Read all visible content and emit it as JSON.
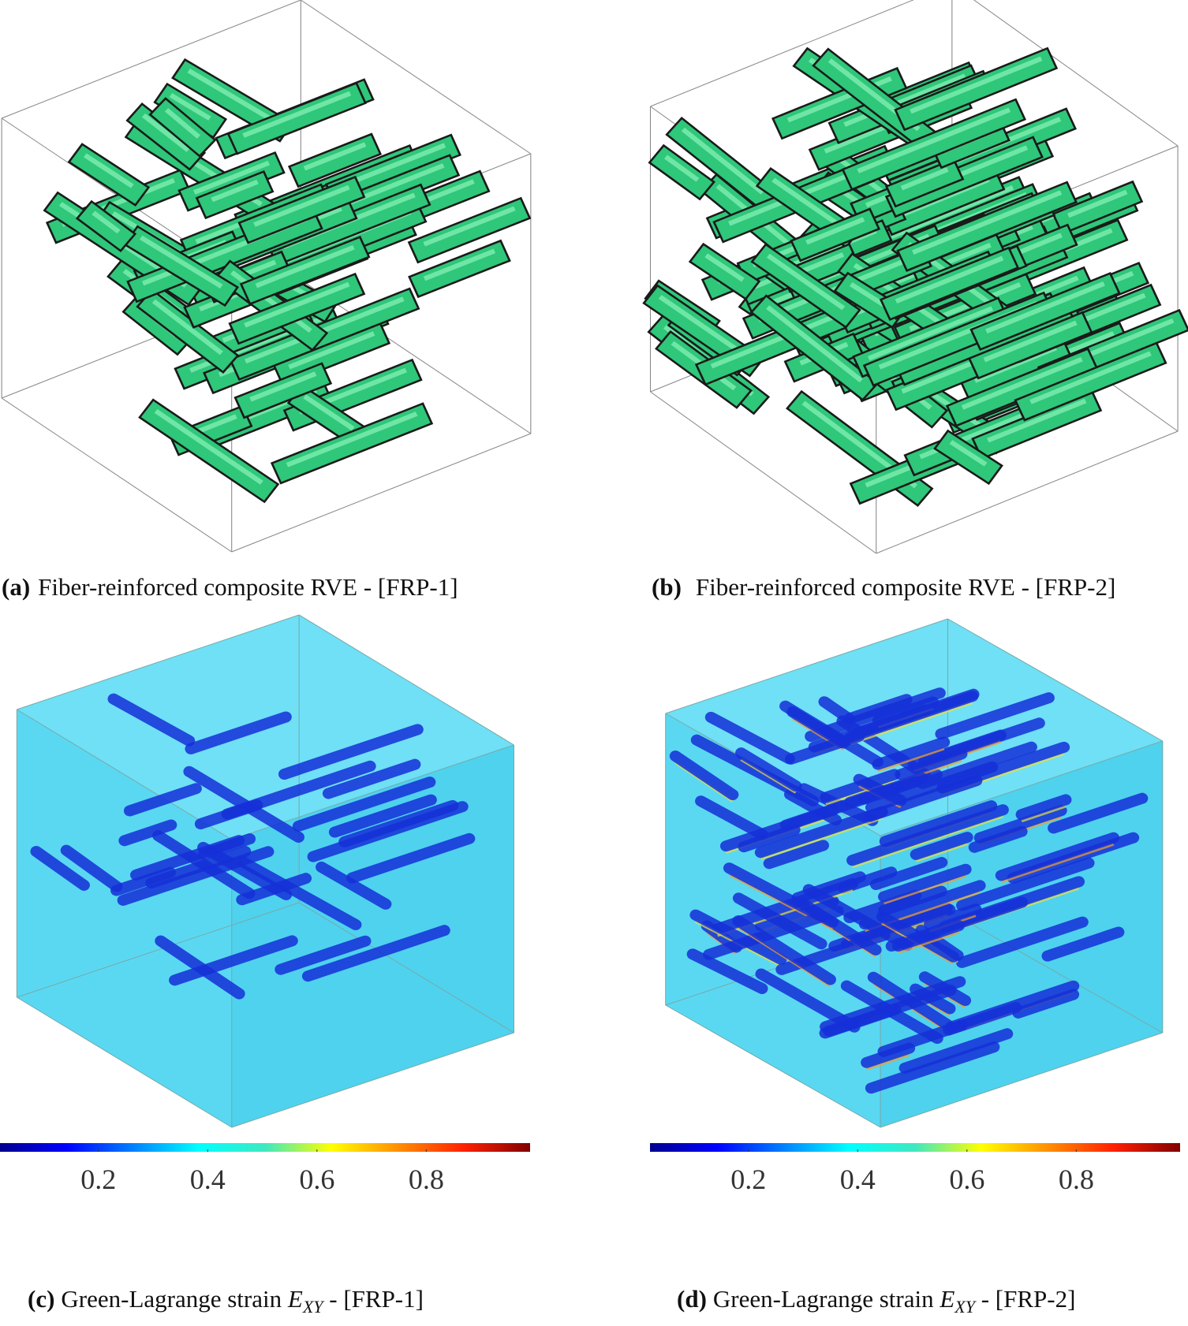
{
  "panels": [
    {
      "label": "(a)",
      "caption": "Fiber-reinforced composite RVE - [FRP-1]"
    },
    {
      "label": "(b)",
      "caption": "Fiber-reinforced composite RVE - [FRP-2]"
    },
    {
      "label": "(c)",
      "caption": "Green-Lagrange strain ",
      "symbol": "E",
      "subscript": "XY",
      "suffix": " - [FRP-1]",
      "colorbar": {
        "range": [
          0.02,
          0.99
        ],
        "ticks": [
          0.2,
          0.4,
          0.6,
          0.8
        ]
      }
    },
    {
      "label": "(d)",
      "caption": "Green-Lagrange strain ",
      "symbol": "E",
      "subscript": "XY",
      "suffix": " - [FRP-2]",
      "colorbar": {
        "range": [
          0.02,
          0.99
        ],
        "ticks": [
          0.2,
          0.4,
          0.6,
          0.8
        ]
      }
    }
  ]
}
